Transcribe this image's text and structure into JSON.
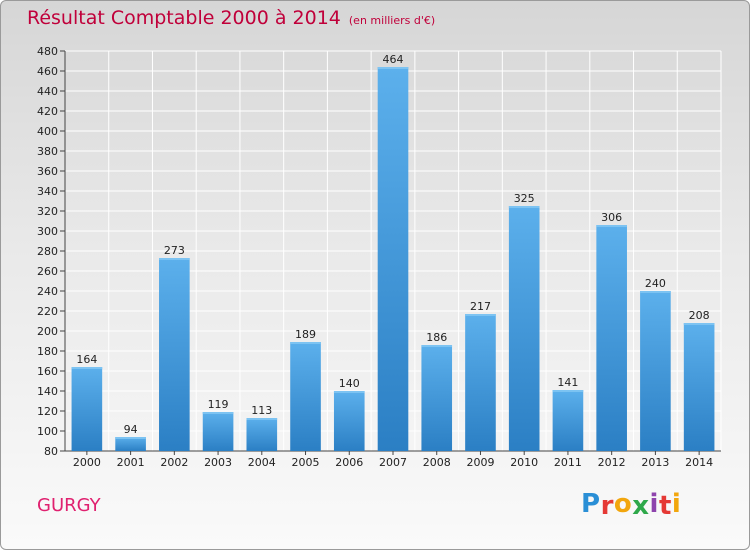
{
  "title": "Résultat Comptable 2000 à 2014",
  "subtitle": "(en milliers d'€)",
  "commune": "GURGY",
  "logo": {
    "letters": [
      "P",
      "r",
      "o",
      "x",
      "i",
      "t",
      "i"
    ],
    "colors": [
      "#2a8fd6",
      "#e53935",
      "#f2a60d",
      "#2ea84a",
      "#8e44ad",
      "#e53935",
      "#f2a60d"
    ]
  },
  "colors": {
    "bar": "#3d97d8",
    "bar_top": "#5cb0ec",
    "title": "#c0003a",
    "commune": "#e0206f"
  },
  "chart_data": {
    "type": "bar",
    "categories": [
      "2000",
      "2001",
      "2002",
      "2003",
      "2004",
      "2005",
      "2006",
      "2007",
      "2008",
      "2009",
      "2010",
      "2011",
      "2012",
      "2013",
      "2014"
    ],
    "values": [
      164,
      94,
      273,
      119,
      113,
      189,
      140,
      464,
      186,
      217,
      325,
      141,
      306,
      240,
      208
    ],
    "ylim": [
      80,
      480
    ],
    "ytick_step": 20,
    "grid": true
  }
}
